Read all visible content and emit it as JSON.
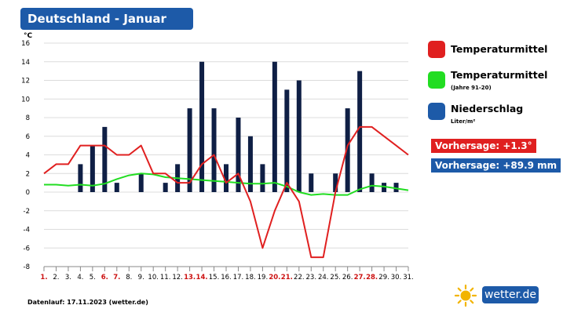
{
  "title": "Deutschland - Januar",
  "legend": {
    "temp": "Temperaturmittel",
    "temp_norm": "Temperaturmittel",
    "temp_norm_sub": "(Jahre 91-20)",
    "precip": "Niederschlag",
    "precip_unit": "Liter/m²"
  },
  "forecast": {
    "temp": "Vorhersage: +1.3°",
    "precip": "Vorhersage: +89.9 mm"
  },
  "footer": "Datenlauf: 17.11.2023 (wetter.de)",
  "brand": "wetter.de",
  "colors": {
    "temp": "#e02020",
    "temp_norm": "#22dd22",
    "precip": "#0f1f45",
    "accent": "#1d5aa8",
    "weekend": "#cc1111"
  },
  "chart_data": {
    "type": "bar+line",
    "ylabel": "°C",
    "ylim": [
      -8,
      16
    ],
    "yticks": [
      16,
      14,
      12,
      10,
      8,
      6,
      4,
      2,
      0,
      -2,
      -4,
      -6,
      -8
    ],
    "grid": true,
    "categories": [
      "1.",
      "2.",
      "3.",
      "4.",
      "5.",
      "6.",
      "7.",
      "8.",
      "9.",
      "10.",
      "11.",
      "12.",
      "13.",
      "14.",
      "15.",
      "16.",
      "17.",
      "18.",
      "19.",
      "20.",
      "21.",
      "22.",
      "23.",
      "24.",
      "25.",
      "26.",
      "27.",
      "28.",
      "29.",
      "30.",
      "31."
    ],
    "weekend_days": [
      "1.",
      "6.",
      "7.",
      "13.",
      "14.",
      "20.",
      "21.",
      "27.",
      "28."
    ],
    "series": [
      {
        "name": "Niederschlag",
        "type": "bar",
        "values": [
          0,
          0,
          0,
          3,
          5,
          7,
          1,
          0,
          2,
          0,
          1,
          3,
          9,
          14,
          9,
          3,
          8,
          6,
          3,
          14,
          11,
          12,
          2,
          0,
          2,
          9,
          13,
          2,
          1,
          1,
          0
        ]
      },
      {
        "name": "Temperaturmittel",
        "type": "line",
        "values": [
          2,
          3,
          3,
          5,
          5,
          5,
          4,
          4,
          5,
          2,
          2,
          1,
          1,
          3,
          4,
          1,
          2,
          -1,
          -6,
          -2,
          1,
          -1,
          -7,
          -7,
          0,
          5,
          7,
          7,
          6,
          5,
          4
        ]
      },
      {
        "name": "Temperaturmittel (Jahre 91-20)",
        "type": "line",
        "values": [
          0.8,
          0.8,
          0.7,
          0.8,
          0.7,
          0.9,
          1.4,
          1.8,
          2.0,
          1.9,
          1.6,
          1.5,
          1.4,
          1.3,
          1.2,
          1.1,
          1.0,
          0.9,
          0.9,
          1.0,
          0.6,
          0.0,
          -0.3,
          -0.2,
          -0.3,
          -0.3,
          0.3,
          0.7,
          0.6,
          0.4,
          0.2
        ]
      }
    ]
  }
}
